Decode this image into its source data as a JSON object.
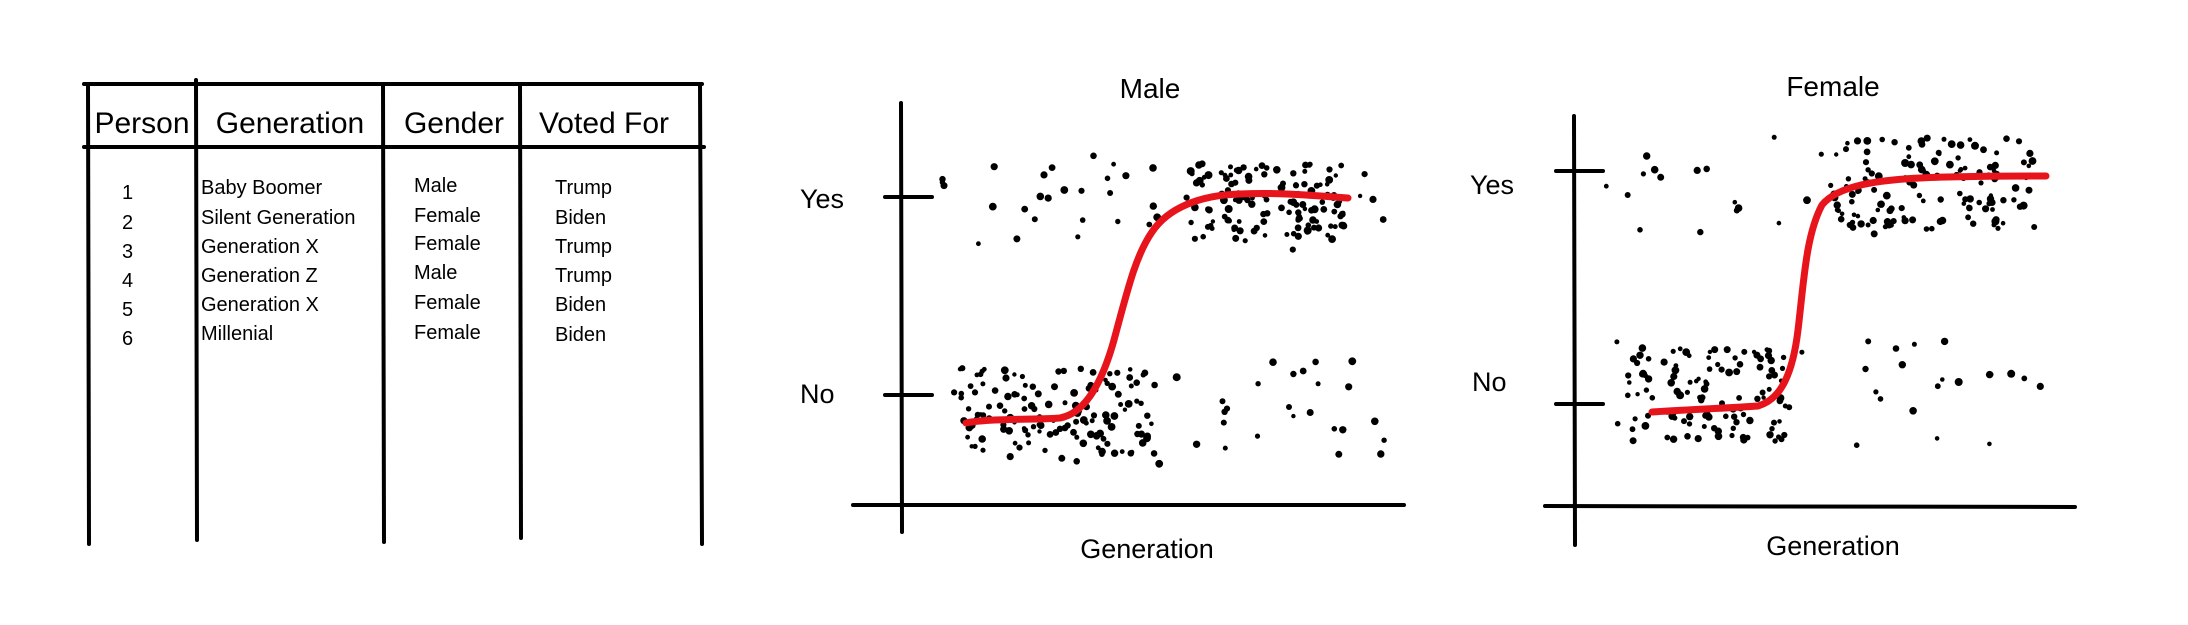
{
  "table": {
    "headers": [
      "Person",
      "Generation",
      "Gender",
      "Voted For"
    ],
    "rows": [
      [
        "1",
        "Baby Boomer",
        "Male",
        "Trump"
      ],
      [
        "2",
        "Silent Generation",
        "Female",
        "Biden"
      ],
      [
        "3",
        "Generation X",
        "Female",
        "Trump"
      ],
      [
        "4",
        "Generation Z",
        "Male",
        "Trump"
      ],
      [
        "5",
        "Generation X",
        "Female",
        "Biden"
      ],
      [
        "6",
        "Millenial",
        "Female",
        "Biden"
      ]
    ]
  },
  "plots": [
    {
      "title": "Male",
      "y_labels": [
        "Yes",
        "No"
      ],
      "x_label": "Generation"
    },
    {
      "title": "Female",
      "y_labels": [
        "Yes",
        "No"
      ],
      "x_label": "Generation"
    }
  ],
  "colors": {
    "ink": "#000000",
    "curve": "#e8141c"
  }
}
